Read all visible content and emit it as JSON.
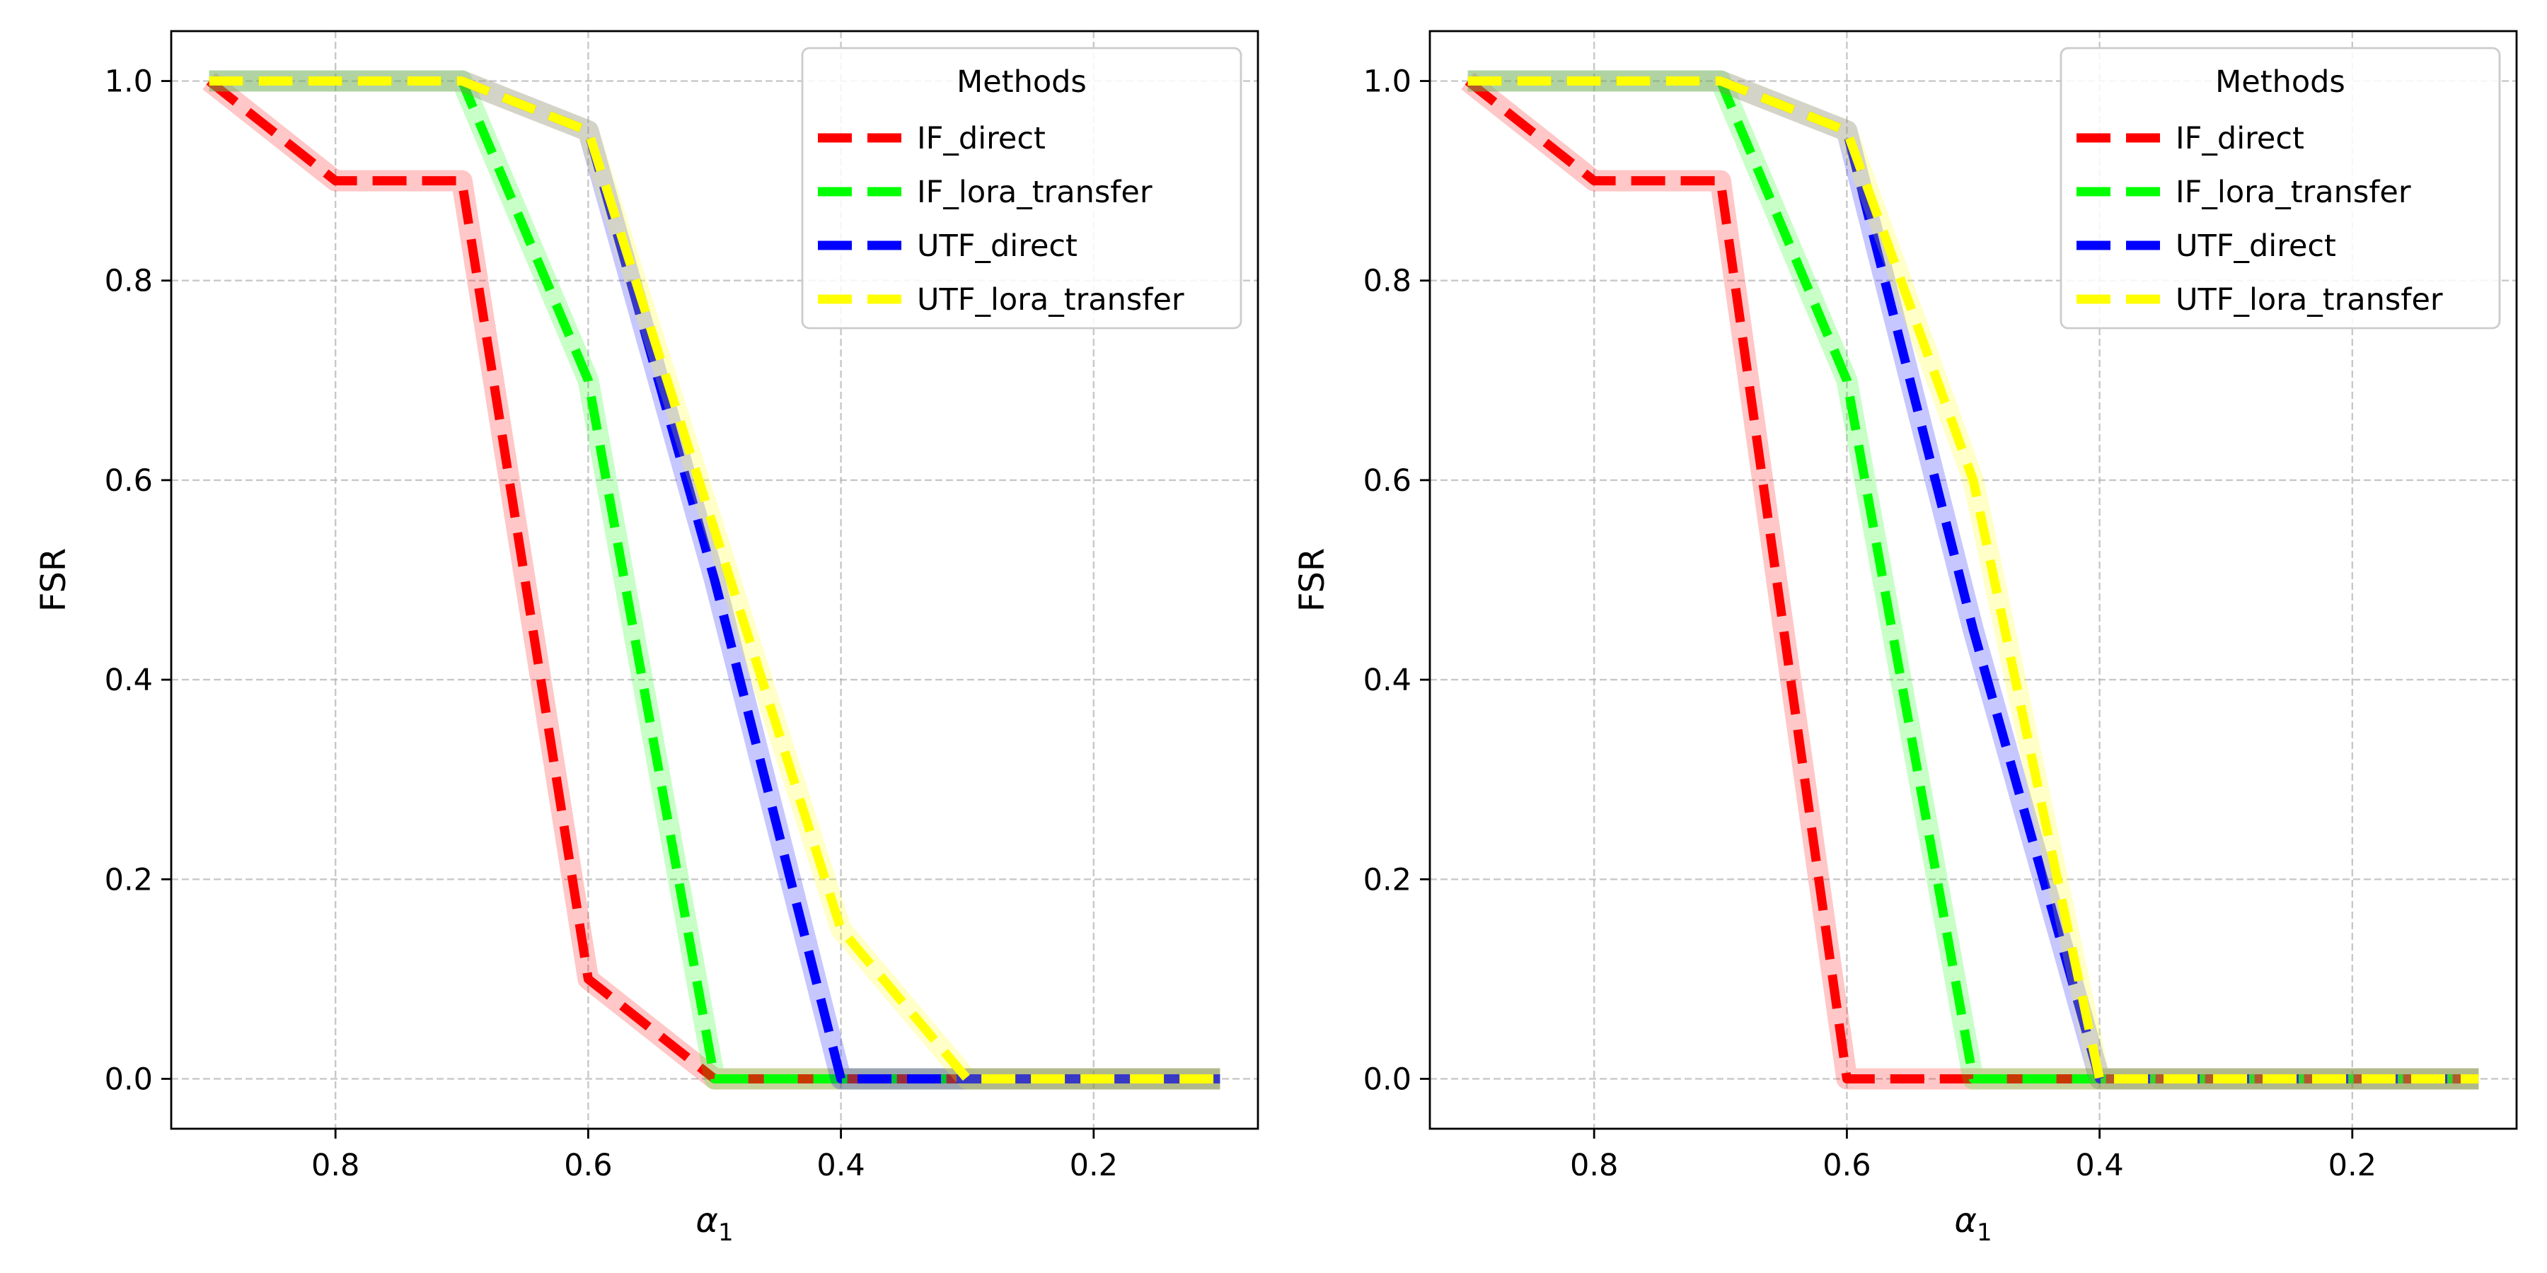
{
  "chart_data": [
    {
      "type": "line",
      "title": "",
      "xlabel": "α",
      "xlabel_subscript": "1",
      "ylabel": "FSR",
      "x_inverted": true,
      "xlim": [
        0.93,
        0.07
      ],
      "ylim": [
        -0.05,
        1.05
      ],
      "xticks": [
        0.8,
        0.6,
        0.4,
        0.2
      ],
      "xtick_labels": [
        "0.8",
        "0.6",
        "0.4",
        "0.2"
      ],
      "yticks": [
        0.0,
        0.2,
        0.4,
        0.6,
        0.8,
        1.0
      ],
      "ytick_labels": [
        "0.0",
        "0.2",
        "0.4",
        "0.6",
        "0.8",
        "1.0"
      ],
      "grid": true,
      "legend": {
        "title": "Methods",
        "position": "top-right"
      },
      "x": [
        0.9,
        0.8,
        0.7,
        0.6,
        0.5,
        0.4,
        0.3,
        0.2,
        0.1
      ],
      "series": [
        {
          "name": "IF_direct",
          "color": "#ff0000",
          "values": [
            1.0,
            0.9,
            0.9,
            0.1,
            0.0,
            0.0,
            0.0,
            0.0,
            0.0
          ]
        },
        {
          "name": "IF_lora_transfer",
          "color": "#00ff00",
          "values": [
            1.0,
            1.0,
            1.0,
            0.7,
            0.0,
            0.0,
            0.0,
            0.0,
            0.0
          ]
        },
        {
          "name": "UTF_direct",
          "color": "#0000ff",
          "values": [
            1.0,
            1.0,
            1.0,
            0.95,
            0.5,
            0.0,
            0.0,
            0.0,
            0.0
          ]
        },
        {
          "name": "UTF_lora_transfer",
          "color": "#ffff00",
          "values": [
            1.0,
            1.0,
            1.0,
            0.95,
            0.55,
            0.15,
            0.0,
            0.0,
            0.0
          ]
        }
      ]
    },
    {
      "type": "line",
      "title": "",
      "xlabel": "α",
      "xlabel_subscript": "1",
      "ylabel": "FSR",
      "x_inverted": true,
      "xlim": [
        0.93,
        0.07
      ],
      "ylim": [
        -0.05,
        1.05
      ],
      "xticks": [
        0.8,
        0.6,
        0.4,
        0.2
      ],
      "xtick_labels": [
        "0.8",
        "0.6",
        "0.4",
        "0.2"
      ],
      "yticks": [
        0.0,
        0.2,
        0.4,
        0.6,
        0.8,
        1.0
      ],
      "ytick_labels": [
        "0.0",
        "0.2",
        "0.4",
        "0.6",
        "0.8",
        "1.0"
      ],
      "grid": true,
      "legend": {
        "title": "Methods",
        "position": "top-right"
      },
      "x": [
        0.9,
        0.8,
        0.7,
        0.6,
        0.5,
        0.4,
        0.3,
        0.2,
        0.1
      ],
      "series": [
        {
          "name": "IF_direct",
          "color": "#ff0000",
          "values": [
            1.0,
            0.9,
            0.9,
            0.0,
            0.0,
            0.0,
            0.0,
            0.0,
            0.0
          ]
        },
        {
          "name": "IF_lora_transfer",
          "color": "#00ff00",
          "values": [
            1.0,
            1.0,
            1.0,
            0.7,
            0.0,
            0.0,
            0.0,
            0.0,
            0.0
          ]
        },
        {
          "name": "UTF_direct",
          "color": "#0000ff",
          "values": [
            1.0,
            1.0,
            1.0,
            0.95,
            0.45,
            0.0,
            0.0,
            0.0,
            0.0
          ]
        },
        {
          "name": "UTF_lora_transfer",
          "color": "#ffff00",
          "values": [
            1.0,
            1.0,
            1.0,
            0.95,
            0.6,
            0.0,
            0.0,
            0.0,
            0.0
          ]
        }
      ]
    }
  ]
}
